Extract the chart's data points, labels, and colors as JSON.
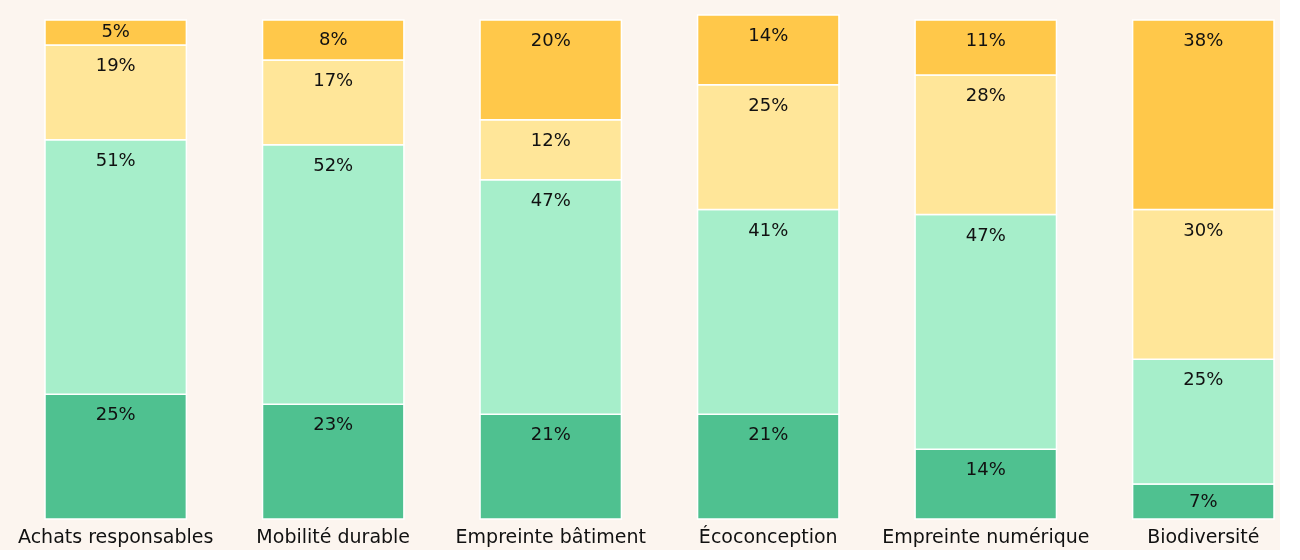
{
  "chart_data": {
    "type": "bar",
    "stacked": true,
    "categories": [
      "Achats responsables",
      "Mobilité durable",
      "Empreinte bâtiment",
      "Écoconception",
      "Empreinte numérique",
      "Biodiversité"
    ],
    "series": [
      {
        "color": "#4fc190",
        "values": [
          25,
          23,
          21,
          21,
          14,
          7
        ],
        "value_labels": [
          "25%",
          "23%",
          "21%",
          "21%",
          "14%",
          "7%"
        ]
      },
      {
        "color": "#a6eeca",
        "values": [
          51,
          52,
          47,
          41,
          47,
          25
        ],
        "value_labels": [
          "51%",
          "52%",
          "47%",
          "41%",
          "47%",
          "25%"
        ]
      },
      {
        "color": "#ffe699",
        "values": [
          19,
          17,
          12,
          25,
          28,
          30
        ],
        "value_labels": [
          "19%",
          "17%",
          "12%",
          "25%",
          "28%",
          "30%"
        ]
      },
      {
        "color": "#ffc84a",
        "values": [
          5,
          8,
          20,
          14,
          11,
          38
        ],
        "value_labels": [
          "5%",
          "8%",
          "20%",
          "14%",
          "11%",
          "38%"
        ]
      }
    ]
  }
}
